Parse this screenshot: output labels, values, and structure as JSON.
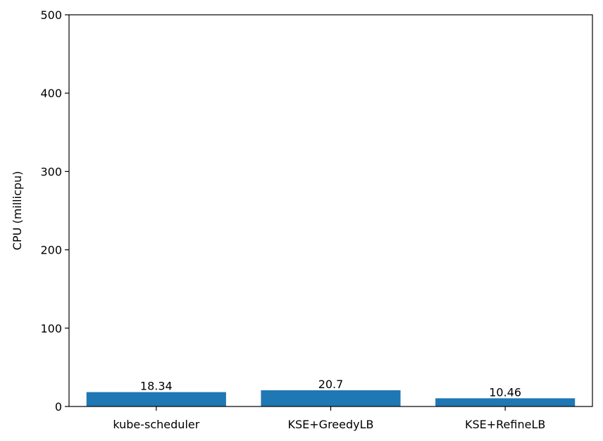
{
  "chart_data": {
    "type": "bar",
    "categories": [
      "kube-scheduler",
      "KSE+GreedyLB",
      "KSE+RefineLB"
    ],
    "values": [
      18.34,
      20.7,
      10.46
    ],
    "value_labels": [
      "18.34",
      "20.7",
      "10.46"
    ],
    "title": "",
    "xlabel": "",
    "ylabel": "CPU (millicpu)",
    "ylim": [
      0,
      500
    ],
    "yticks": [
      0,
      100,
      200,
      300,
      400,
      500
    ],
    "grid": false,
    "bar_color": "#1f77b4"
  }
}
